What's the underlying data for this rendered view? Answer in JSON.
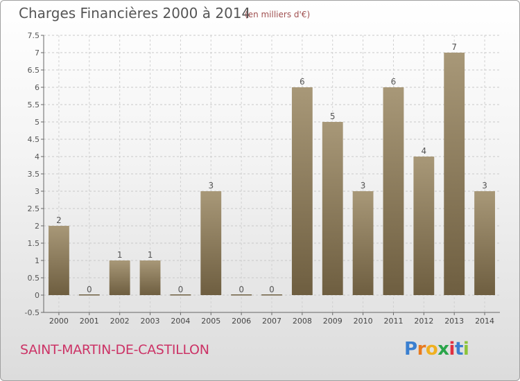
{
  "chart_data": {
    "type": "bar",
    "title": "Charges Financières 2000 à 2014",
    "subtitle": "(en milliers d'€)",
    "categories": [
      "2000",
      "2001",
      "2002",
      "2003",
      "2004",
      "2005",
      "2006",
      "2007",
      "2008",
      "2009",
      "2010",
      "2011",
      "2012",
      "2013",
      "2014"
    ],
    "values": [
      2,
      0,
      1,
      1,
      0,
      3,
      0,
      0,
      6,
      5,
      3,
      6,
      4,
      7,
      3
    ],
    "value_labels": [
      "2",
      "0",
      "1",
      "1",
      "0",
      "3",
      "0",
      "0",
      "6",
      "5",
      "3",
      "6",
      "4",
      "7",
      "3"
    ],
    "yticks": [
      "-0.5",
      "0",
      "0.5",
      "1",
      "1.5",
      "2",
      "2.5",
      "3",
      "3.5",
      "4",
      "4.5",
      "5",
      "5.5",
      "6",
      "6.5",
      "7",
      "7.5"
    ],
    "ylim": [
      -0.5,
      7.5
    ],
    "xlabel": "",
    "ylabel": "",
    "grid": true,
    "bar_color": "#8b7a5c"
  },
  "commune_name": "SAINT-MARTIN-DE-CASTILLON",
  "logo": {
    "letters": [
      "P",
      "r",
      "o",
      "x",
      "i",
      "t",
      "i"
    ],
    "colors": [
      "#3a7fd0",
      "#e87a1e",
      "#f0b020",
      "#2aa54a",
      "#e03040",
      "#3a7fd0",
      "#8cc43a"
    ]
  }
}
